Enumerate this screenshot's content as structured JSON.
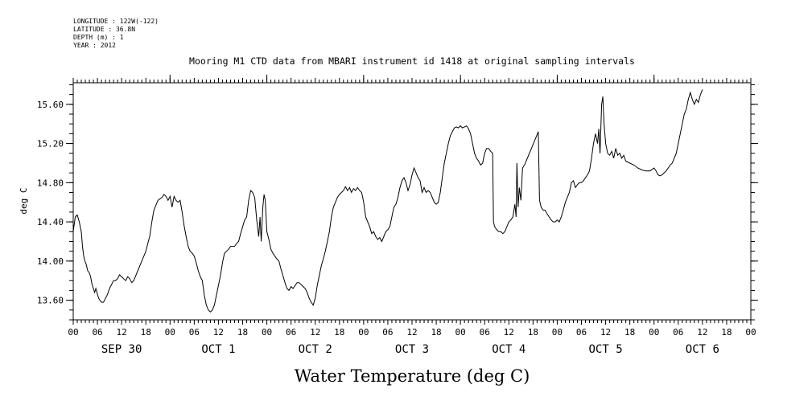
{
  "header": {
    "longitude": "LONGITUDE : 122W(-122)",
    "latitude": "LATITUDE : 36.8N",
    "depth": "DEPTH (m) : 1",
    "year": "YEAR : 2012"
  },
  "chart_data": {
    "type": "line",
    "title": "Mooring M1 CTD data from MBARI instrument id 1418 at original sampling intervals",
    "xlabel": "Water Temperature (deg C)",
    "ylabel": "deg C",
    "ylim": [
      13.4,
      15.82
    ],
    "yticks": [
      "13.60",
      "14.00",
      "14.40",
      "14.80",
      "15.20",
      "15.60"
    ],
    "x_unit": "hours since 2012-09-30 00:00",
    "xlim": [
      0,
      168
    ],
    "hour_tick_labels": [
      "00",
      "06",
      "12",
      "18"
    ],
    "day_labels": [
      "SEP 30",
      "OCT  1",
      "OCT  2",
      "OCT  3",
      "OCT  4",
      "OCT  5",
      "OCT  6"
    ],
    "grid": false,
    "series": [
      {
        "color": "#000000",
        "points": [
          [
            0,
            14.3
          ],
          [
            0.5,
            14.45
          ],
          [
            1,
            14.47
          ],
          [
            1.5,
            14.4
          ],
          [
            2,
            14.3
          ],
          [
            2.3,
            14.15
          ],
          [
            2.6,
            14.05
          ],
          [
            2.9,
            14.0
          ],
          [
            3.2,
            13.97
          ],
          [
            3.6,
            13.9
          ],
          [
            4,
            13.88
          ],
          [
            4.3,
            13.84
          ],
          [
            4.6,
            13.77
          ],
          [
            5,
            13.72
          ],
          [
            5.3,
            13.68
          ],
          [
            5.6,
            13.72
          ],
          [
            6,
            13.66
          ],
          [
            6.3,
            13.62
          ],
          [
            6.6,
            13.6
          ],
          [
            7,
            13.58
          ],
          [
            7.5,
            13.58
          ],
          [
            8,
            13.62
          ],
          [
            8.5,
            13.66
          ],
          [
            9,
            13.72
          ],
          [
            9.5,
            13.76
          ],
          [
            10,
            13.8
          ],
          [
            10.5,
            13.8
          ],
          [
            11,
            13.82
          ],
          [
            11.5,
            13.86
          ],
          [
            12,
            13.84
          ],
          [
            12.5,
            13.82
          ],
          [
            13,
            13.8
          ],
          [
            13.5,
            13.84
          ],
          [
            14,
            13.82
          ],
          [
            14.5,
            13.78
          ],
          [
            15,
            13.8
          ],
          [
            15.5,
            13.85
          ],
          [
            16,
            13.9
          ],
          [
            17,
            14.0
          ],
          [
            18,
            14.1
          ],
          [
            19,
            14.26
          ],
          [
            19.5,
            14.4
          ],
          [
            20,
            14.52
          ],
          [
            21,
            14.62
          ],
          [
            22,
            14.65
          ],
          [
            22.5,
            14.68
          ],
          [
            23,
            14.66
          ],
          [
            23.5,
            14.62
          ],
          [
            24,
            14.66
          ],
          [
            24.5,
            14.55
          ],
          [
            25,
            14.66
          ],
          [
            25.5,
            14.62
          ],
          [
            26,
            14.6
          ],
          [
            26.5,
            14.62
          ],
          [
            27,
            14.5
          ],
          [
            27.5,
            14.36
          ],
          [
            28,
            14.25
          ],
          [
            28.5,
            14.15
          ],
          [
            29,
            14.1
          ],
          [
            29.5,
            14.08
          ],
          [
            30,
            14.05
          ],
          [
            30.5,
            13.98
          ],
          [
            31,
            13.9
          ],
          [
            31.5,
            13.84
          ],
          [
            32,
            13.8
          ],
          [
            32.5,
            13.65
          ],
          [
            33,
            13.55
          ],
          [
            33.5,
            13.5
          ],
          [
            34,
            13.48
          ],
          [
            34.5,
            13.5
          ],
          [
            35,
            13.55
          ],
          [
            35.5,
            13.65
          ],
          [
            36,
            13.75
          ],
          [
            36.5,
            13.85
          ],
          [
            37,
            13.98
          ],
          [
            37.5,
            14.08
          ],
          [
            38,
            14.1
          ],
          [
            38.5,
            14.12
          ],
          [
            39,
            14.15
          ],
          [
            39.5,
            14.15
          ],
          [
            40,
            14.15
          ],
          [
            40.5,
            14.18
          ],
          [
            41,
            14.2
          ],
          [
            41.5,
            14.28
          ],
          [
            42,
            14.35
          ],
          [
            42.5,
            14.42
          ],
          [
            43,
            14.45
          ],
          [
            43.5,
            14.62
          ],
          [
            44,
            14.72
          ],
          [
            44.5,
            14.7
          ],
          [
            45,
            14.65
          ],
          [
            45.5,
            14.42
          ],
          [
            46,
            14.25
          ],
          [
            46.3,
            14.45
          ],
          [
            46.6,
            14.2
          ],
          [
            47,
            14.55
          ],
          [
            47.3,
            14.68
          ],
          [
            47.6,
            14.62
          ],
          [
            48,
            14.3
          ],
          [
            48.5,
            14.22
          ],
          [
            49,
            14.12
          ],
          [
            49.5,
            14.08
          ],
          [
            50,
            14.05
          ],
          [
            50.5,
            14.02
          ],
          [
            51,
            14.0
          ],
          [
            51.5,
            13.92
          ],
          [
            52,
            13.85
          ],
          [
            52.5,
            13.78
          ],
          [
            53,
            13.72
          ],
          [
            53.5,
            13.7
          ],
          [
            54,
            13.74
          ],
          [
            54.5,
            13.72
          ],
          [
            55,
            13.75
          ],
          [
            55.5,
            13.78
          ],
          [
            56,
            13.78
          ],
          [
            56.5,
            13.76
          ],
          [
            57,
            13.74
          ],
          [
            57.5,
            13.72
          ],
          [
            58,
            13.68
          ],
          [
            58.5,
            13.62
          ],
          [
            59,
            13.58
          ],
          [
            59.5,
            13.55
          ],
          [
            60,
            13.62
          ],
          [
            60.5,
            13.75
          ],
          [
            61,
            13.85
          ],
          [
            61.5,
            13.95
          ],
          [
            62,
            14.02
          ],
          [
            62.5,
            14.1
          ],
          [
            63,
            14.2
          ],
          [
            63.5,
            14.3
          ],
          [
            64,
            14.45
          ],
          [
            64.5,
            14.55
          ],
          [
            65,
            14.6
          ],
          [
            65.5,
            14.65
          ],
          [
            66,
            14.68
          ],
          [
            66.5,
            14.7
          ],
          [
            67,
            14.72
          ],
          [
            67.5,
            14.76
          ],
          [
            68,
            14.72
          ],
          [
            68.5,
            14.75
          ],
          [
            69,
            14.7
          ],
          [
            69.5,
            14.74
          ],
          [
            70,
            14.72
          ],
          [
            70.5,
            14.75
          ],
          [
            71,
            14.72
          ],
          [
            71.5,
            14.7
          ],
          [
            72,
            14.6
          ],
          [
            72.5,
            14.45
          ],
          [
            73,
            14.4
          ],
          [
            73.5,
            14.35
          ],
          [
            74,
            14.28
          ],
          [
            74.5,
            14.3
          ],
          [
            75,
            14.25
          ],
          [
            75.5,
            14.22
          ],
          [
            76,
            14.24
          ],
          [
            76.5,
            14.2
          ],
          [
            77,
            14.25
          ],
          [
            77.5,
            14.3
          ],
          [
            78,
            14.32
          ],
          [
            78.5,
            14.35
          ],
          [
            79,
            14.45
          ],
          [
            79.5,
            14.55
          ],
          [
            80,
            14.58
          ],
          [
            80.5,
            14.65
          ],
          [
            81,
            14.75
          ],
          [
            81.5,
            14.82
          ],
          [
            82,
            14.85
          ],
          [
            82.5,
            14.8
          ],
          [
            83,
            14.72
          ],
          [
            83.5,
            14.78
          ],
          [
            84,
            14.88
          ],
          [
            84.5,
            14.95
          ],
          [
            85,
            14.9
          ],
          [
            85.5,
            14.85
          ],
          [
            86,
            14.82
          ],
          [
            86.5,
            14.7
          ],
          [
            87,
            14.75
          ],
          [
            87.5,
            14.7
          ],
          [
            88,
            14.72
          ],
          [
            88.5,
            14.7
          ],
          [
            89,
            14.65
          ],
          [
            89.5,
            14.6
          ],
          [
            90,
            14.58
          ],
          [
            90.5,
            14.6
          ],
          [
            91,
            14.7
          ],
          [
            91.5,
            14.85
          ],
          [
            92,
            15.0
          ],
          [
            92.5,
            15.1
          ],
          [
            93,
            15.2
          ],
          [
            93.5,
            15.28
          ],
          [
            94,
            15.32
          ],
          [
            94.5,
            15.36
          ],
          [
            95,
            15.37
          ],
          [
            95.5,
            15.36
          ],
          [
            96,
            15.38
          ],
          [
            96.5,
            15.36
          ],
          [
            97,
            15.37
          ],
          [
            97.5,
            15.38
          ],
          [
            98,
            15.35
          ],
          [
            98.5,
            15.3
          ],
          [
            99,
            15.2
          ],
          [
            99.5,
            15.1
          ],
          [
            100,
            15.05
          ],
          [
            100.5,
            15.02
          ],
          [
            101,
            14.98
          ],
          [
            101.5,
            15.0
          ],
          [
            102,
            15.1
          ],
          [
            102.5,
            15.15
          ],
          [
            103,
            15.15
          ],
          [
            103.5,
            15.12
          ],
          [
            104,
            15.1
          ],
          [
            104.2,
            14.4
          ],
          [
            104.5,
            14.35
          ],
          [
            105,
            14.32
          ],
          [
            105.5,
            14.3
          ],
          [
            106,
            14.3
          ],
          [
            106.5,
            14.28
          ],
          [
            107,
            14.3
          ],
          [
            107.5,
            14.35
          ],
          [
            108,
            14.4
          ],
          [
            108.5,
            14.42
          ],
          [
            109,
            14.45
          ],
          [
            109.5,
            14.58
          ],
          [
            109.8,
            14.45
          ],
          [
            110,
            15.0
          ],
          [
            110.3,
            14.55
          ],
          [
            110.6,
            14.75
          ],
          [
            111,
            14.62
          ],
          [
            111.4,
            14.95
          ],
          [
            112,
            14.99
          ],
          [
            112.5,
            15.04
          ],
          [
            113,
            15.09
          ],
          [
            113.5,
            15.14
          ],
          [
            114,
            15.19
          ],
          [
            114.5,
            15.24
          ],
          [
            115,
            15.29
          ],
          [
            115.3,
            15.32
          ],
          [
            115.6,
            14.62
          ],
          [
            116,
            14.55
          ],
          [
            116.5,
            14.52
          ],
          [
            117,
            14.52
          ],
          [
            117.5,
            14.48
          ],
          [
            118,
            14.45
          ],
          [
            118.5,
            14.42
          ],
          [
            119,
            14.4
          ],
          [
            119.5,
            14.4
          ],
          [
            120,
            14.42
          ],
          [
            120.5,
            14.4
          ],
          [
            121,
            14.45
          ],
          [
            121.5,
            14.52
          ],
          [
            122,
            14.6
          ],
          [
            122.5,
            14.65
          ],
          [
            123,
            14.7
          ],
          [
            123.5,
            14.8
          ],
          [
            124,
            14.82
          ],
          [
            124.5,
            14.75
          ],
          [
            125,
            14.78
          ],
          [
            125.5,
            14.8
          ],
          [
            126,
            14.8
          ],
          [
            126.5,
            14.82
          ],
          [
            127,
            14.85
          ],
          [
            127.5,
            14.88
          ],
          [
            128,
            14.92
          ],
          [
            128.5,
            15.05
          ],
          [
            129,
            15.2
          ],
          [
            129.5,
            15.3
          ],
          [
            130,
            15.2
          ],
          [
            130.3,
            15.35
          ],
          [
            130.6,
            15.1
          ],
          [
            131,
            15.6
          ],
          [
            131.3,
            15.68
          ],
          [
            131.6,
            15.4
          ],
          [
            132,
            15.2
          ],
          [
            132.5,
            15.1
          ],
          [
            133,
            15.08
          ],
          [
            133.5,
            15.12
          ],
          [
            134,
            15.05
          ],
          [
            134.5,
            15.15
          ],
          [
            135,
            15.08
          ],
          [
            135.5,
            15.1
          ],
          [
            136,
            15.05
          ],
          [
            136.5,
            15.08
          ],
          [
            137,
            15.02
          ],
          [
            138,
            15.0
          ],
          [
            139,
            14.98
          ],
          [
            140,
            14.95
          ],
          [
            141,
            14.93
          ],
          [
            142,
            14.92
          ],
          [
            143,
            14.92
          ],
          [
            144,
            14.95
          ],
          [
            144.5,
            14.92
          ],
          [
            145,
            14.88
          ],
          [
            145.5,
            14.87
          ],
          [
            146,
            14.88
          ],
          [
            146.5,
            14.9
          ],
          [
            147,
            14.92
          ],
          [
            147.5,
            14.95
          ],
          [
            148,
            14.98
          ],
          [
            148.5,
            15.0
          ],
          [
            149,
            15.05
          ],
          [
            149.5,
            15.1
          ],
          [
            150,
            15.2
          ],
          [
            150.5,
            15.3
          ],
          [
            151,
            15.4
          ],
          [
            151.5,
            15.5
          ],
          [
            152,
            15.55
          ],
          [
            152.5,
            15.65
          ],
          [
            153,
            15.72
          ],
          [
            153.5,
            15.65
          ],
          [
            154,
            15.6
          ],
          [
            154.5,
            15.65
          ],
          [
            155,
            15.62
          ],
          [
            155.5,
            15.7
          ],
          [
            156,
            15.75
          ]
        ]
      }
    ]
  }
}
